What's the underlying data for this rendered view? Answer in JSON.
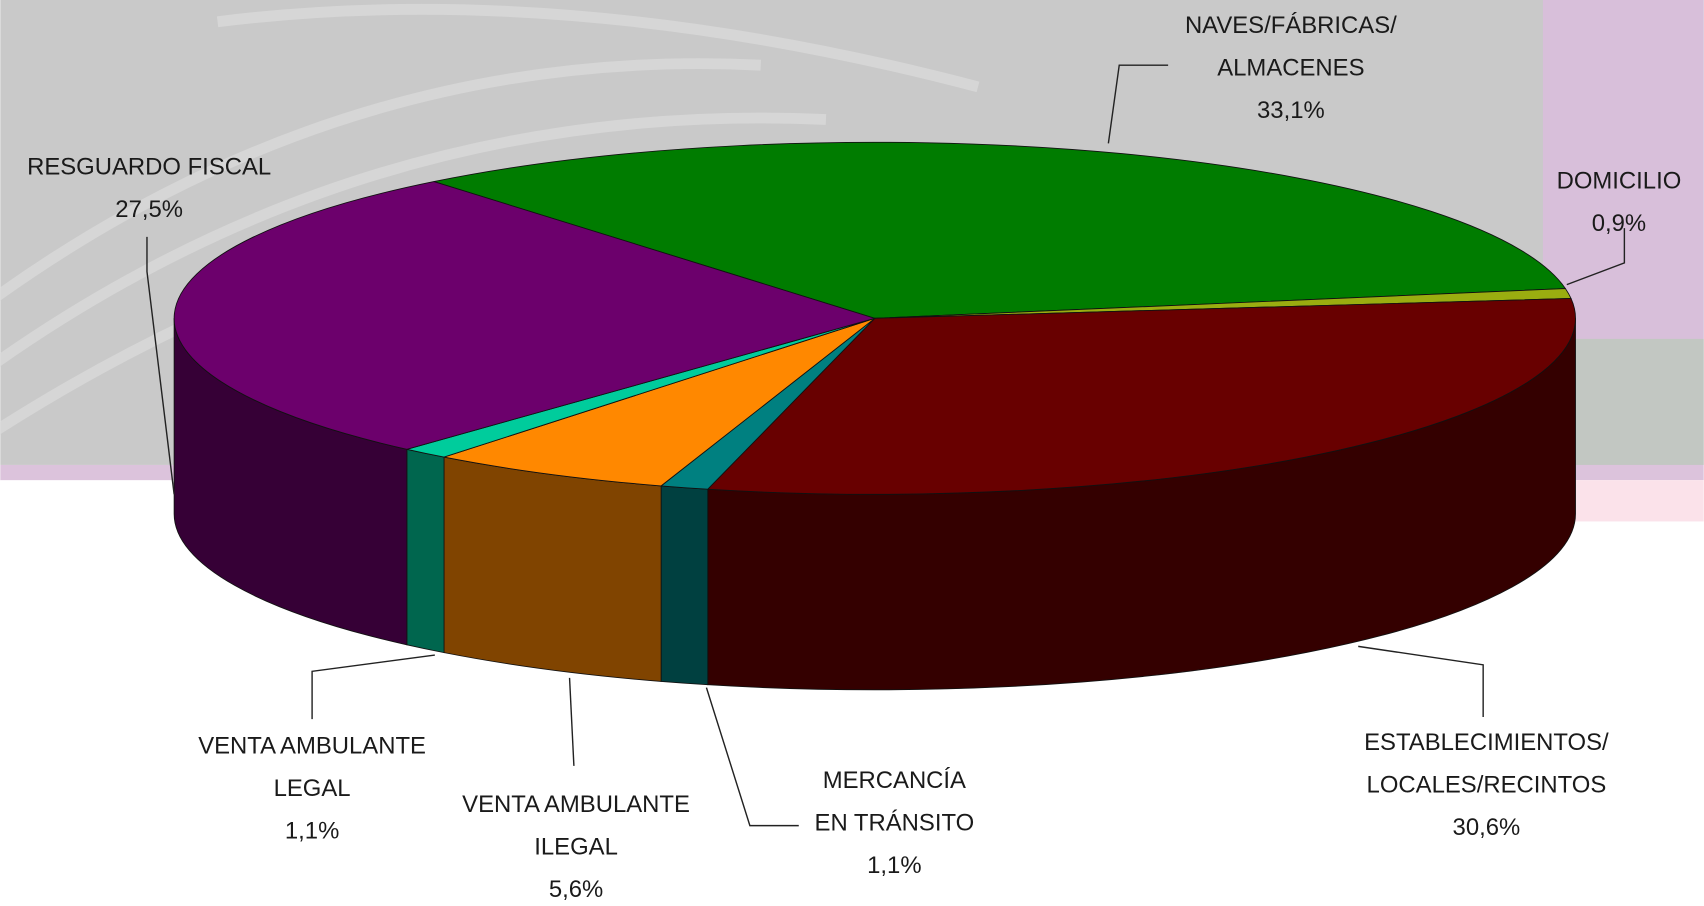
{
  "chart_data": {
    "type": "pie3d",
    "categories": [
      "NAVES/FÁBRICAS/\nALMACENES",
      "DOMICILIO",
      "ESTABLECIMIENTOS/\nLOCALES/RECINTOS",
      "MERCANCÍA\nEN TRÁNSITO",
      "VENTA AMBULANTE\nILEGAL",
      "VENTA AMBULANTE\nLEGAL",
      "RESGUARDO FISCAL"
    ],
    "values": [
      33.1,
      0.9,
      30.6,
      1.1,
      5.6,
      1.1,
      27.5
    ],
    "value_labels": [
      "33,1%",
      "0,9%",
      "30,6%",
      "1,1%",
      "5,6%",
      "1,1%",
      "27,5%"
    ],
    "colors": [
      "#007c00",
      "#9aad10",
      "#680000",
      "#008080",
      "#ff8800",
      "#00cc9c",
      "#6c006c"
    ]
  }
}
